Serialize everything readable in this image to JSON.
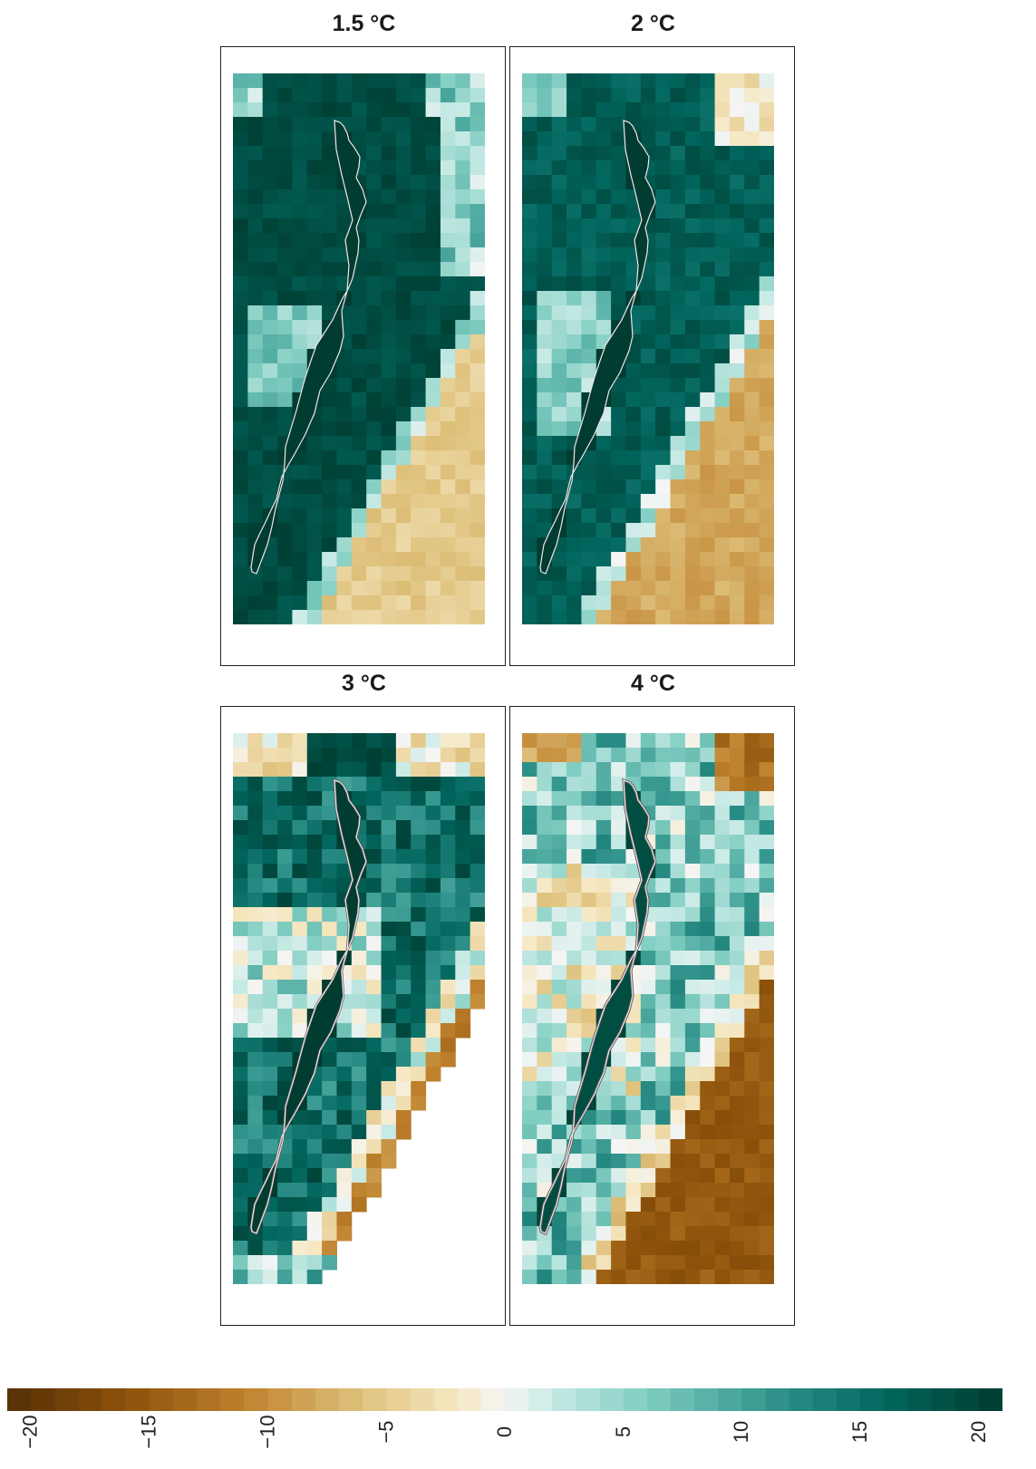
{
  "panels": [
    {
      "title": "1.5 °C",
      "id": "p15",
      "warming_level": 1.5
    },
    {
      "title": "2 °C",
      "id": "p2",
      "warming_level": 2
    },
    {
      "title": "3 °C",
      "id": "p3",
      "warming_level": 3
    },
    {
      "title": "4 °C",
      "id": "p4",
      "warming_level": 4
    }
  ],
  "colorbar": {
    "min": -21,
    "max": 21,
    "ticks": [
      "−20",
      "−15",
      "−10",
      "−5",
      "0",
      "5",
      "10",
      "15",
      "20"
    ],
    "tick_values": [
      -20,
      -15,
      -10,
      -5,
      0,
      5,
      10,
      15,
      20
    ],
    "palette_low": "#543005",
    "palette_mid": "#f5f5f5",
    "palette_high": "#003c30"
  },
  "grid": {
    "columns": 17,
    "rows": 38,
    "outline_color_light": "#f4e4ea",
    "outline_color_dark": "#5a5a5a"
  }
}
